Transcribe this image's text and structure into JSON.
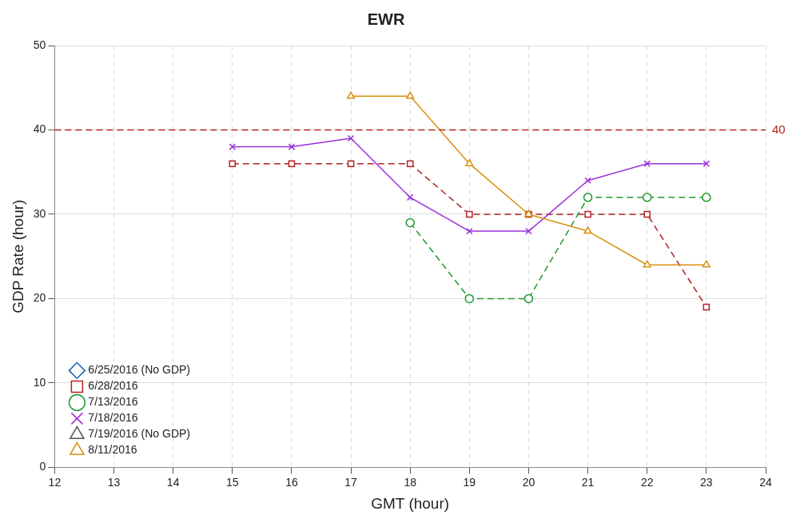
{
  "chart_data": {
    "type": "line",
    "title": "EWR",
    "xlabel": "GMT (hour)",
    "ylabel": "GDP Rate (hour)",
    "xlim": [
      12,
      24
    ],
    "xticks": [
      12,
      13,
      14,
      15,
      16,
      17,
      18,
      19,
      20,
      21,
      22,
      23,
      24
    ],
    "ylim": [
      0,
      50
    ],
    "yticks": [
      0,
      10,
      20,
      30,
      40,
      50
    ],
    "grid": true,
    "legend": "bottom left",
    "series": [
      {
        "name": "6/25/2016 (No GDP)",
        "color": "#1f5fa8",
        "marker": "diamond",
        "line_style": "solid"
      },
      {
        "name": "6/28/2016",
        "color": "#b22222",
        "marker": "square",
        "line_style": "dashed",
        "x": [
          15,
          16,
          17,
          18,
          19,
          20,
          21,
          22,
          23
        ],
        "values": [
          36,
          36,
          36,
          36,
          30,
          30,
          30,
          30,
          19
        ]
      },
      {
        "name": "7/13/2016",
        "color": "#1e9a2e",
        "marker": "circle",
        "line_style": "dashed",
        "x": [
          18,
          19,
          20,
          21,
          22,
          23
        ],
        "values": [
          29,
          20,
          20,
          32,
          32,
          32
        ]
      },
      {
        "name": "7/18/2016",
        "color": "#9b30d9",
        "marker": "cross",
        "line_style": "solid",
        "x": [
          15,
          16,
          17,
          18,
          19,
          20,
          21,
          22,
          23
        ],
        "values": [
          38,
          38,
          39,
          32,
          28,
          28,
          34,
          36,
          36
        ]
      },
      {
        "name": "7/19/2016 (No GDP)",
        "color": "#555555",
        "marker": "triangle",
        "line_style": "dashed"
      },
      {
        "name": "8/11/2016",
        "color": "#d9900f",
        "marker": "triangle",
        "line_style": "solid",
        "x": [
          17,
          18,
          19,
          20,
          21,
          22,
          23
        ],
        "values": [
          44,
          44,
          36,
          30,
          28,
          24,
          24
        ]
      }
    ],
    "ref_lines": [
      {
        "axis": "y",
        "value": 40,
        "label": "40",
        "color": "#b22222",
        "line_style": "dashed"
      }
    ]
  }
}
